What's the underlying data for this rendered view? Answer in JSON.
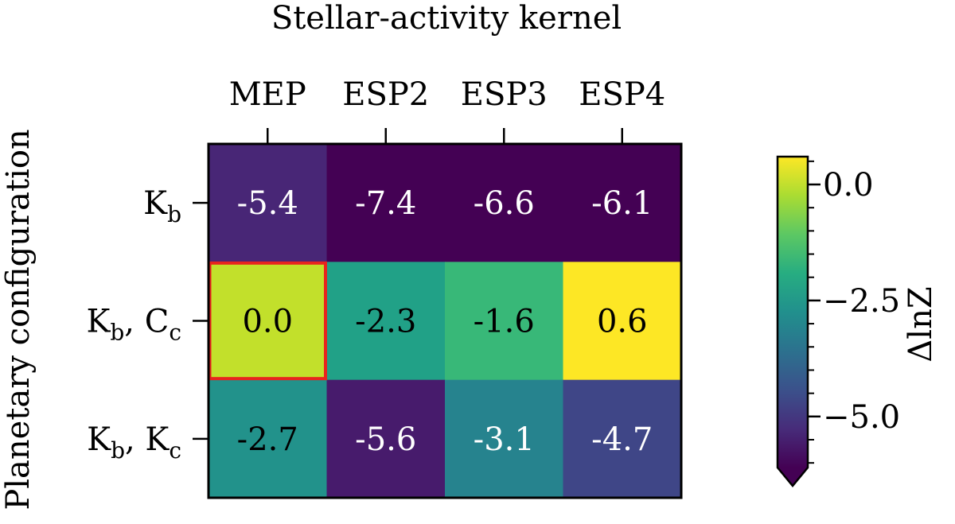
{
  "chart_data": {
    "type": "heatmap",
    "title": "Stellar-activity kernel",
    "xlabel": "Stellar-activity kernel",
    "ylabel": "Planetary configuration",
    "x_categories": [
      "MEP",
      "ESP2",
      "ESP3",
      "ESP4"
    ],
    "y_categories": [
      {
        "base": "K",
        "sub": "b",
        "extra_base": "",
        "extra_sub": ""
      },
      {
        "base": "K",
        "sub": "b",
        "extra_base": "C",
        "extra_sub": "c"
      },
      {
        "base": "K",
        "sub": "b",
        "extra_base": "K",
        "extra_sub": "c"
      }
    ],
    "values": [
      [
        -5.4,
        -7.4,
        -6.6,
        -6.1
      ],
      [
        0.0,
        -2.3,
        -1.6,
        0.6
      ],
      [
        -2.7,
        -5.6,
        -3.1,
        -4.7
      ]
    ],
    "value_labels": [
      [
        "-5.4",
        "-7.4",
        "-6.6",
        "-6.1"
      ],
      [
        "0.0",
        "-2.3",
        "-1.6",
        "0.6"
      ],
      [
        "-2.7",
        "-5.6",
        "-3.1",
        "-4.7"
      ]
    ],
    "highlight": {
      "row": 1,
      "col": 0,
      "color": "#e8241e"
    },
    "colormap": "viridis",
    "colorbar": {
      "label": "ΔlnZ",
      "range": [
        -6.1,
        0.6
      ],
      "ticks": [
        "0.0",
        "−2.5",
        "−5.0"
      ],
      "tick_values": [
        0.0,
        -2.5,
        -5.0
      ],
      "extend": "min"
    }
  }
}
